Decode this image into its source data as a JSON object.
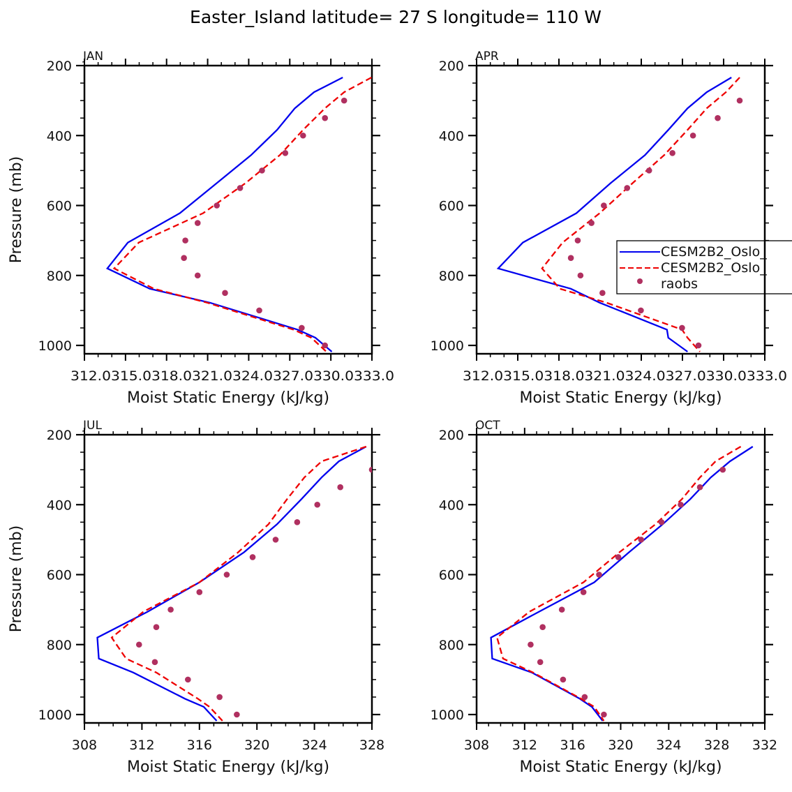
{
  "chart_data": {
    "type": "line",
    "title": "Easter_Island  latitude= 27 S longitude= 110 W",
    "legend": {
      "placement": "right-middle (inside APR panel, clipped)",
      "entries": [
        {
          "label": "CESM2B2_Oslo_",
          "style": "solid",
          "color": "#0000ee"
        },
        {
          "label": "CESM2B2_Oslo_",
          "style": "dashed",
          "color": "#ee0000"
        },
        {
          "label": "raobs",
          "style": "marker",
          "color": "#b03060"
        }
      ]
    },
    "panels": [
      {
        "name": "JAN",
        "xlabel": "Moist Static Energy (kJ/kg)",
        "ylabel": "Pressure (mb)",
        "xlim": [
          312.03,
          333.03
        ],
        "ylim": [
          1025,
          200
        ],
        "x_ticks": [
          "312.03",
          "15.03",
          "18.03",
          "21.03",
          "24.03",
          "27.03",
          "30.03",
          "33.0"
        ],
        "x_tick_label_text": "312.0315.0318.0321.0324.0327.0330.0333.0",
        "x_tick_values": [
          312.03,
          315.03,
          318.03,
          321.03,
          324.03,
          327.03,
          330.03,
          333.03
        ],
        "y_ticks": [
          200,
          400,
          600,
          800,
          1000
        ],
        "show_ylabel": true,
        "series": [
          {
            "name": "CESM2B2_Oslo_ (solid)",
            "p": [
              234,
              276,
              322,
              384,
              456,
              536,
              622,
              706,
              780,
              838,
              878,
              955,
              978,
              1018
            ],
            "mse": [
              330.9,
              328.8,
              327.4,
              326.1,
              324.2,
              321.7,
              319.0,
              315.2,
              313.7,
              316.8,
              321.2,
              327.6,
              328.9,
              330.1
            ]
          },
          {
            "name": "CESM2B2_Oslo_ (dashed)",
            "p": [
              234,
              276,
              322,
              384,
              456,
              536,
              622,
              706,
              780,
              838,
              878,
              955,
              978,
              1018
            ],
            "mse": [
              333.0,
              331.0,
              329.6,
              328.0,
              326.3,
              323.8,
              320.7,
              316.0,
              314.2,
              317.1,
              321.0,
              327.3,
              328.6,
              329.7
            ]
          },
          {
            "name": "raobs",
            "p": [
              300,
              350,
              400,
              450,
              500,
              550,
              600,
              650,
              700,
              750,
              800,
              850,
              900,
              950,
              1000
            ],
            "mse": [
              331.0,
              329.6,
              328.0,
              326.7,
              325.0,
              323.4,
              321.7,
              320.3,
              319.4,
              319.3,
              320.3,
              322.3,
              324.8,
              327.9,
              329.6
            ]
          }
        ]
      },
      {
        "name": "APR",
        "xlabel": "Moist Static Energy (kJ/kg)",
        "ylabel": "",
        "xlim": [
          312.03,
          333.03
        ],
        "ylim": [
          1025,
          200
        ],
        "x_ticks": [
          "312.03",
          "15.03",
          "18.03",
          "21.03",
          "24.03",
          "27.03",
          "30.03",
          "33.0"
        ],
        "x_tick_label_text": "312.0315.0318.0321.0324.0327.0330.0333.0",
        "x_tick_values": [
          312.03,
          315.03,
          318.03,
          321.03,
          324.03,
          327.03,
          330.03,
          333.03
        ],
        "y_ticks": [
          200,
          400,
          600,
          800,
          1000
        ],
        "show_ylabel": false,
        "series": [
          {
            "name": "CESM2B2_Oslo_ (solid)",
            "p": [
              234,
              276,
              322,
              384,
              456,
              536,
              622,
              706,
              780,
              838,
              878,
              955,
              978,
              1018
            ],
            "mse": [
              330.6,
              328.8,
              327.4,
              326.0,
              324.3,
              321.8,
              319.3,
              315.4,
              313.6,
              318.9,
              321.0,
              325.9,
              326.0,
              327.4
            ]
          },
          {
            "name": "CESM2B2_Oslo_ (dashed)",
            "p": [
              234,
              276,
              322,
              384,
              456,
              536,
              622,
              706,
              780,
              838,
              878,
              955,
              978,
              1018
            ],
            "mse": [
              331.2,
              330.2,
              328.8,
              327.4,
              325.7,
              323.4,
              321.0,
              318.3,
              316.8,
              318.1,
              321.5,
              327.0,
              327.4,
              328.3
            ]
          },
          {
            "name": "raobs",
            "p": [
              300,
              350,
              400,
              450,
              500,
              550,
              600,
              650,
              700,
              750,
              800,
              850,
              900,
              950,
              1000
            ],
            "mse": [
              331.2,
              329.6,
              327.8,
              326.3,
              324.6,
              323.0,
              321.3,
              320.4,
              319.4,
              318.9,
              319.6,
              321.2,
              324.0,
              327.0,
              328.2
            ]
          }
        ]
      },
      {
        "name": "JUL",
        "xlabel": "Moist Static Energy (kJ/kg)",
        "ylabel": "Pressure (mb)",
        "xlim": [
          308,
          328
        ],
        "ylim": [
          1025,
          200
        ],
        "x_ticks": [
          "308",
          "312",
          "316",
          "320",
          "324",
          "328"
        ],
        "x_tick_values": [
          308,
          312,
          316,
          320,
          324,
          328
        ],
        "y_ticks": [
          200,
          400,
          600,
          800,
          1000
        ],
        "show_ylabel": true,
        "series": [
          {
            "name": "CESM2B2_Oslo_ (solid)",
            "p": [
              234,
              276,
              322,
              384,
              456,
              536,
              622,
              706,
              780,
              840,
              880,
              955,
              978,
              1018
            ],
            "mse": [
              327.6,
              325.7,
              324.5,
              323.1,
              321.4,
              319.1,
              316.0,
              312.4,
              308.9,
              309.0,
              311.4,
              315.0,
              316.3,
              317.2
            ]
          },
          {
            "name": "CESM2B2_Oslo_ (dashed)",
            "p": [
              234,
              276,
              322,
              384,
              456,
              536,
              622,
              706,
              780,
              840,
              880,
              955,
              978,
              1018
            ],
            "mse": [
              327.6,
              324.5,
              323.3,
              322.1,
              320.8,
              318.7,
              316.0,
              312.1,
              309.9,
              310.9,
              313.0,
              315.9,
              316.7,
              317.6
            ]
          },
          {
            "name": "raobs",
            "p": [
              300,
              350,
              400,
              450,
              500,
              550,
              600,
              650,
              700,
              750,
              800,
              850,
              900,
              950,
              1000
            ],
            "mse": [
              328.0,
              325.8,
              324.2,
              322.8,
              321.3,
              319.7,
              317.9,
              316.0,
              314.0,
              313.0,
              311.8,
              312.9,
              315.2,
              317.4,
              318.6
            ]
          }
        ]
      },
      {
        "name": "OCT",
        "xlabel": "Moist Static Energy (kJ/kg)",
        "ylabel": "",
        "xlim": [
          308,
          332
        ],
        "ylim": [
          1025,
          200
        ],
        "x_ticks": [
          "308",
          "312",
          "316",
          "320",
          "324",
          "328",
          "332"
        ],
        "x_tick_values": [
          308,
          312,
          316,
          320,
          324,
          328,
          332
        ],
        "y_ticks": [
          200,
          400,
          600,
          800,
          1000
        ],
        "show_ylabel": false,
        "series": [
          {
            "name": "CESM2B2_Oslo_ (solid)",
            "p": [
              234,
              276,
              322,
              384,
              456,
              536,
              622,
              706,
              780,
              840,
              880,
              955,
              978,
              1018
            ],
            "mse": [
              331.0,
              329.1,
              327.5,
              325.8,
              323.5,
              320.7,
              317.8,
              313.2,
              309.2,
              309.3,
              312.6,
              316.6,
              317.6,
              318.5
            ]
          },
          {
            "name": "CESM2B2_Oslo_ (dashed)",
            "p": [
              234,
              276,
              322,
              384,
              456,
              536,
              622,
              706,
              780,
              840,
              880,
              955,
              978,
              1018
            ],
            "mse": [
              330.0,
              327.9,
              326.6,
              325.1,
              322.9,
              319.9,
              316.9,
              312.4,
              309.7,
              310.2,
              312.7,
              316.7,
              317.8,
              318.6
            ]
          },
          {
            "name": "raobs",
            "p": [
              300,
              350,
              400,
              450,
              500,
              550,
              600,
              650,
              700,
              750,
              800,
              850,
              900,
              950,
              1000
            ],
            "mse": [
              328.5,
              326.6,
              325.0,
              323.4,
              321.7,
              319.8,
              318.2,
              316.9,
              315.1,
              313.5,
              312.5,
              313.3,
              315.2,
              317.0,
              318.6
            ]
          }
        ]
      }
    ]
  }
}
